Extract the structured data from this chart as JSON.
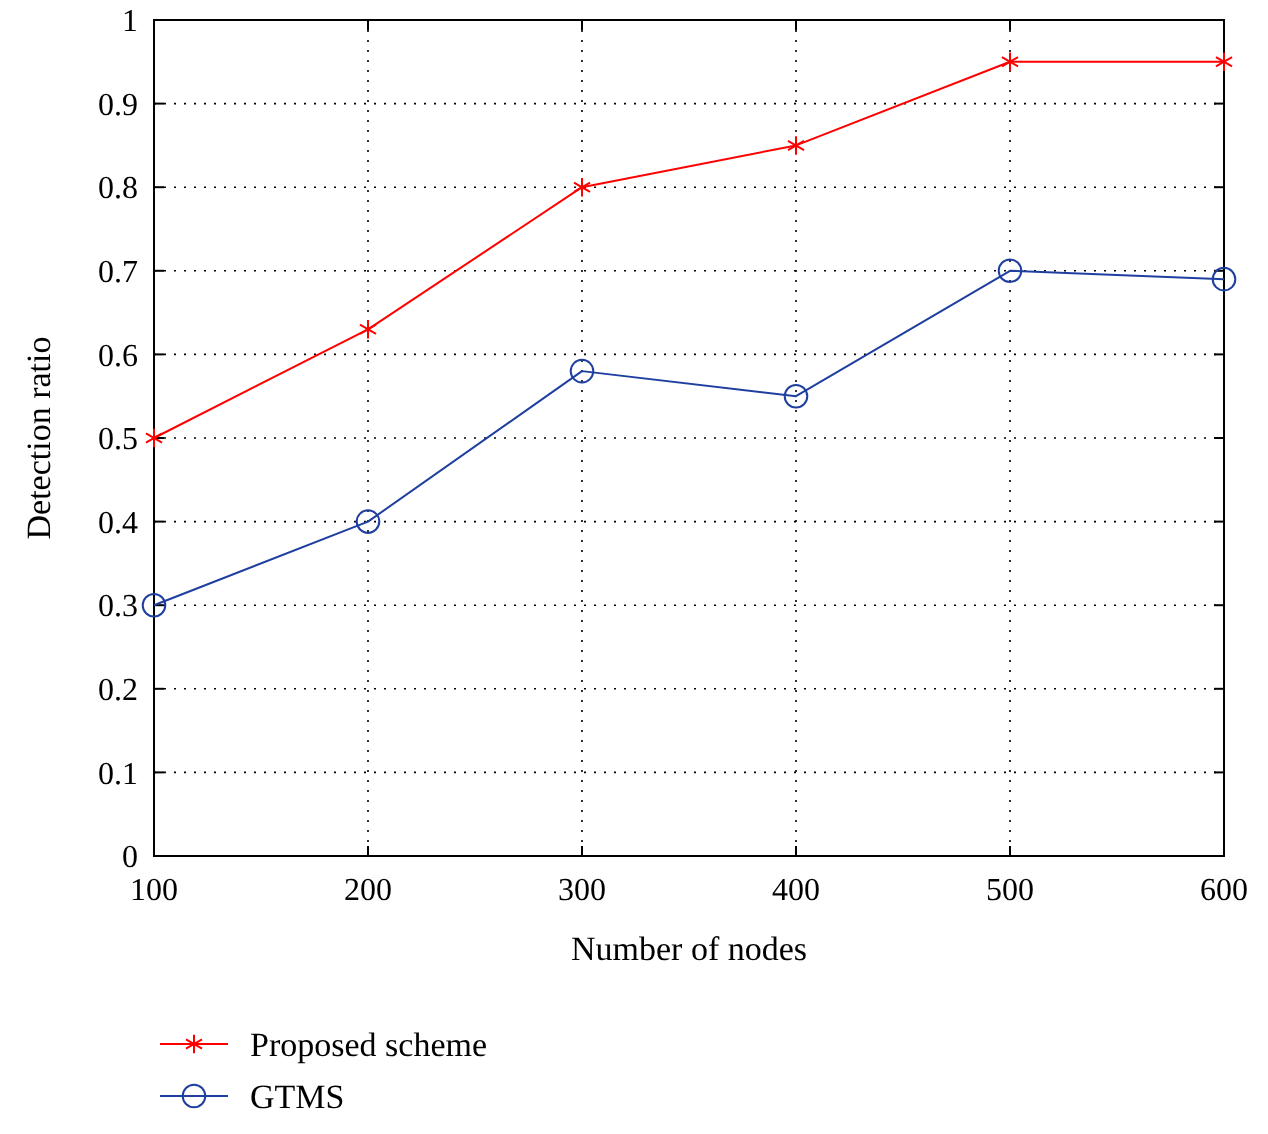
{
  "chart_data": {
    "type": "line",
    "xlabel": "Number of nodes",
    "ylabel": "Detection ratio",
    "x": [
      100,
      200,
      300,
      400,
      500,
      600
    ],
    "series": [
      {
        "name": "Proposed scheme",
        "color": "#ff0000",
        "marker": "cross",
        "values": [
          0.5,
          0.63,
          0.8,
          0.85,
          0.95,
          0.95
        ]
      },
      {
        "name": "GTMS",
        "color": "#1f3fa0",
        "marker": "circle",
        "values": [
          0.3,
          0.4,
          0.58,
          0.55,
          0.7,
          0.69
        ]
      }
    ],
    "xlim": [
      100,
      600
    ],
    "xticks": [
      100,
      200,
      300,
      400,
      500,
      600
    ],
    "ylim": [
      0,
      1
    ],
    "yticks": [
      0,
      0.1,
      0.2,
      0.3,
      0.4,
      0.5,
      0.6,
      0.7,
      0.8,
      0.9,
      1
    ],
    "grid": true,
    "legend": "bottom",
    "line_style": "solid"
  }
}
